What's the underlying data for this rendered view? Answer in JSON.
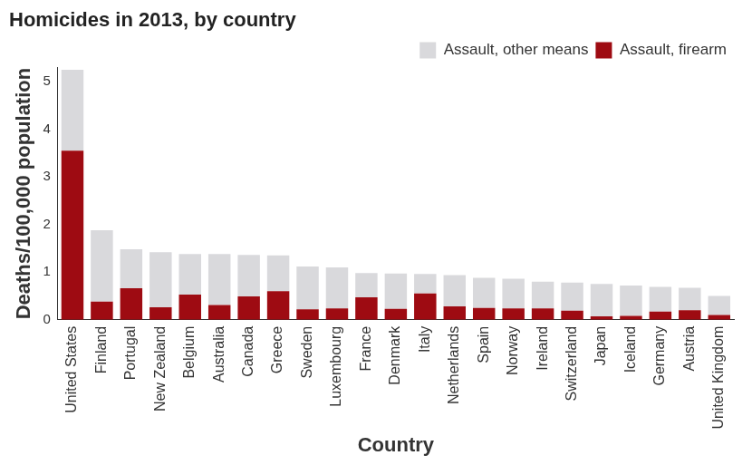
{
  "chart_data": {
    "type": "bar",
    "title": "Homicides in 2013, by country",
    "x_label": "Country",
    "y_label": "Deaths/100,000 population",
    "categories": [
      "United States",
      "Finland",
      "Portugal",
      "New Zealand",
      "Belgium",
      "Australia",
      "Canada",
      "Greece",
      "Sweden",
      "Luxembourg",
      "France",
      "Denmark",
      "Italy",
      "Netherlands",
      "Spain",
      "Norway",
      "Ireland",
      "Switzerland",
      "Japan",
      "Iceland",
      "Germany",
      "Austria",
      "United Kingdom"
    ],
    "series": [
      {
        "name": "Assault, firearm",
        "color": "#9e0b12",
        "values": [
          3.55,
          0.38,
          0.66,
          0.26,
          0.53,
          0.31,
          0.49,
          0.6,
          0.22,
          0.24,
          0.47,
          0.23,
          0.55,
          0.28,
          0.25,
          0.24,
          0.24,
          0.19,
          0.07,
          0.08,
          0.17,
          0.2,
          0.1
        ]
      },
      {
        "name": "Assault, other means",
        "color": "#d9d9dc",
        "values": [
          1.7,
          1.5,
          0.82,
          1.16,
          0.85,
          1.07,
          0.87,
          0.75,
          0.9,
          0.86,
          0.51,
          0.74,
          0.41,
          0.66,
          0.63,
          0.62,
          0.56,
          0.59,
          0.68,
          0.64,
          0.52,
          0.47,
          0.4
        ]
      }
    ],
    "stacked": true,
    "grid": false,
    "legend": "top-right",
    "ylim": [
      0,
      5.3
    ],
    "yticks": [
      0,
      1,
      2,
      3,
      4,
      5
    ]
  }
}
